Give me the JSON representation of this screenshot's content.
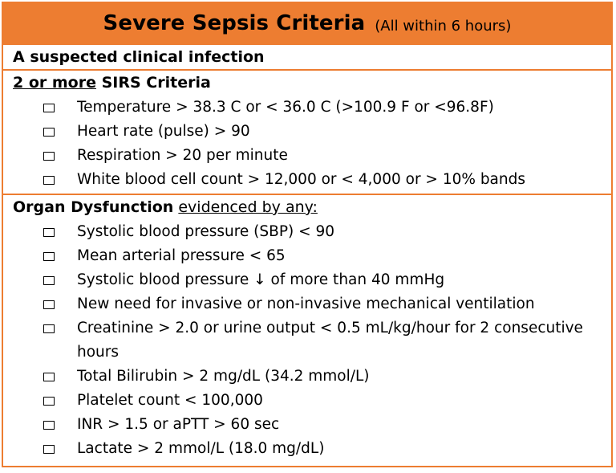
{
  "header": {
    "title": "Severe Sepsis Criteria",
    "subtitle": "(All within 6 hours)",
    "accent_color": "#ED7D31"
  },
  "infection": {
    "label": "A suspected clinical infection"
  },
  "sirs": {
    "count_label": "2 or more",
    "label": " SIRS Criteria",
    "items": [
      "Temperature > 38.3 C or < 36.0 C (>100.9 F or <96.8F)",
      "Heart rate (pulse) > 90",
      "Respiration > 20 per minute",
      "White blood cell count > 12,000 or < 4,000 or > 10% bands"
    ]
  },
  "organ": {
    "label": "Organ Dysfunction",
    "qualifier": "evidenced by any:",
    "items": [
      "Systolic blood pressure (SBP) < 90",
      "Mean arterial pressure < 65",
      "Systolic blood pressure ↓ of more than 40 mmHg",
      "New need for invasive or non-invasive mechanical ventilation",
      "Creatinine > 2.0 or urine output < 0.5 mL/kg/hour for 2 consecutive hours",
      "Total Bilirubin > 2 mg/dL (34.2 mmol/L)",
      "Platelet count < 100,000",
      "INR > 1.5 or aPTT > 60 sec",
      "Lactate > 2 mmol/L (18.0 mg/dL)"
    ]
  }
}
